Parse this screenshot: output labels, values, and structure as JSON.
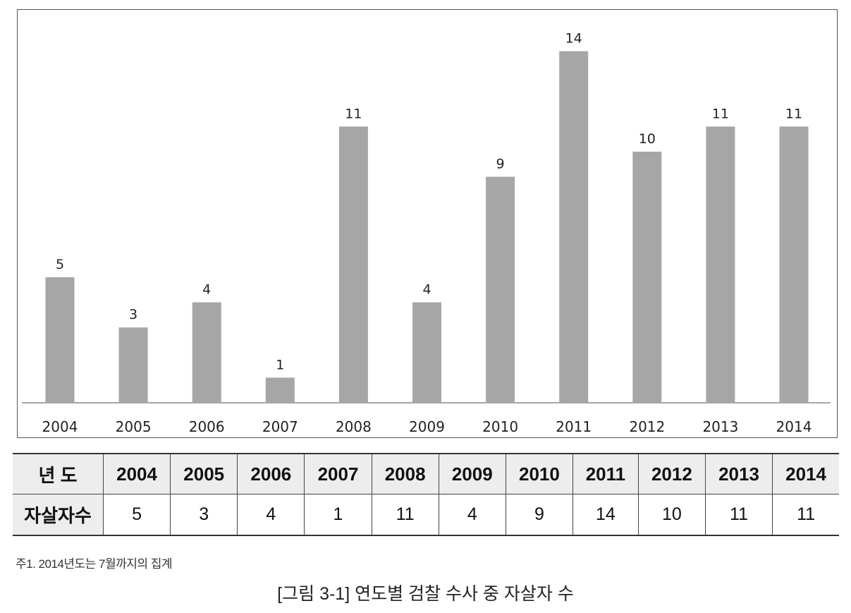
{
  "chart_data": {
    "type": "bar",
    "categories": [
      "2004",
      "2005",
      "2006",
      "2007",
      "2008",
      "2009",
      "2010",
      "2011",
      "2012",
      "2013",
      "2014"
    ],
    "values": [
      5,
      3,
      4,
      1,
      11,
      4,
      9,
      14,
      10,
      11,
      11
    ],
    "data_labels": [
      "5",
      "3",
      "4",
      "1",
      "11",
      "4",
      "9",
      "14",
      "10",
      "11",
      "11"
    ],
    "title": "",
    "xlabel": "",
    "ylabel": "",
    "ylim": [
      0,
      15
    ],
    "grid": false,
    "legend": "none",
    "bar_color": "#a6a6a6"
  },
  "table": {
    "year_header": "년 도",
    "count_header": "자살자수",
    "years": [
      "2004",
      "2005",
      "2006",
      "2007",
      "2008",
      "2009",
      "2010",
      "2011",
      "2012",
      "2013",
      "2014"
    ],
    "counts": [
      "5",
      "3",
      "4",
      "1",
      "11",
      "4",
      "9",
      "14",
      "10",
      "11",
      "11"
    ]
  },
  "note": "주1. 2014년도는 7월까지의 집계",
  "caption": "[그림 3-1] 연도별 검찰 수사 중 자살자 수"
}
